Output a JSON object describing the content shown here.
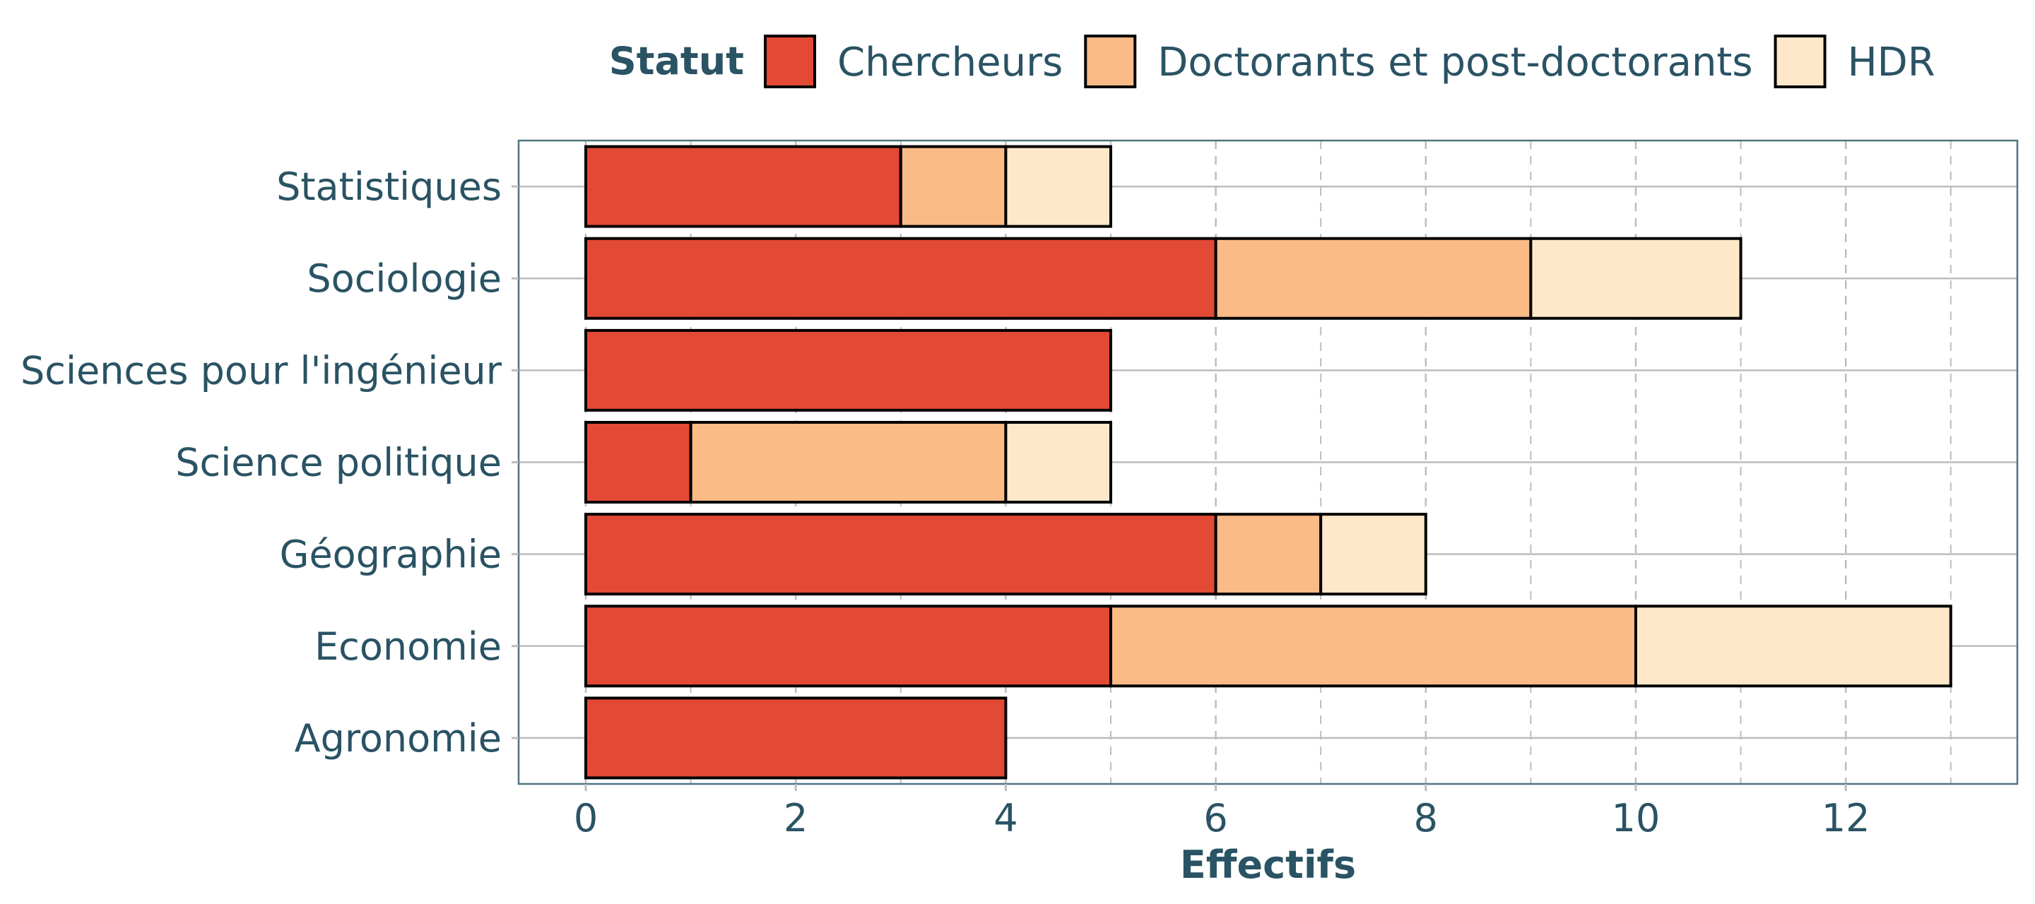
{
  "chart_data": {
    "type": "bar",
    "orientation": "horizontal",
    "stacked": true,
    "categories": [
      "Statistiques",
      "Sociologie",
      "Sciences pour l'ingénieur",
      "Science politique",
      "Géographie",
      "Economie",
      "Agronomie"
    ],
    "series": [
      {
        "name": "Chercheurs",
        "color": "#e24a35",
        "values": [
          3,
          6,
          5,
          1,
          6,
          5,
          4
        ]
      },
      {
        "name": "Doctorants et post-doctorants",
        "color": "#fbbb87",
        "values": [
          1,
          3,
          0,
          3,
          1,
          5,
          0
        ]
      },
      {
        "name": "HDR",
        "color": "#fee8c9",
        "values": [
          1,
          2,
          0,
          1,
          1,
          3,
          0
        ]
      }
    ],
    "legend_title": "Statut",
    "legend_position": "top",
    "xlabel": "Effectifs",
    "ylabel": "",
    "xlim": [
      -0.63,
      13.63
    ],
    "xticks": [
      0,
      2,
      4,
      6,
      8,
      10,
      12
    ],
    "x_minor_gridlines": [
      1,
      3,
      5,
      7,
      9,
      11,
      13
    ],
    "grid": true,
    "colors": {
      "text": "#2a5364",
      "panel_border": "#4f7480",
      "major_grid": "#bdbdbd",
      "minor_grid": "#bdbdbd",
      "bar_outline": "#000000"
    }
  }
}
